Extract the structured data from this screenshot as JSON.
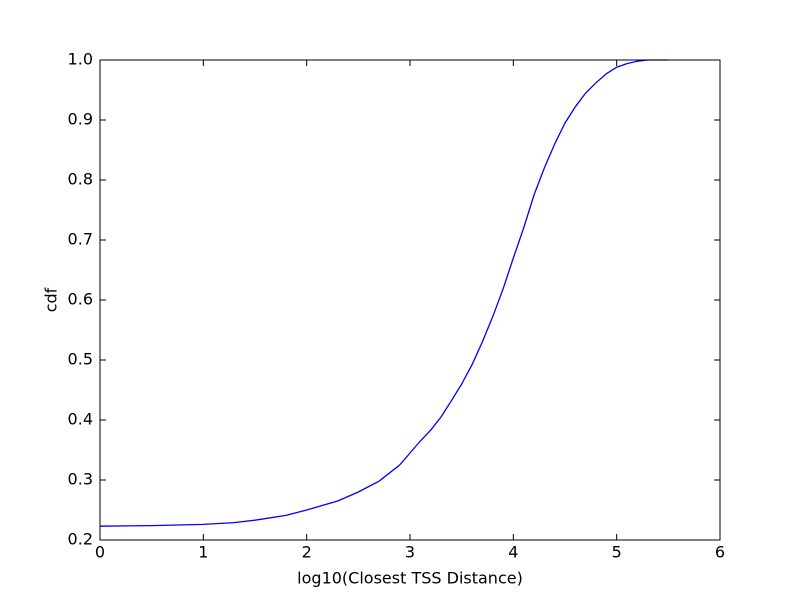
{
  "chart_data": {
    "type": "line",
    "xlabel": "log10(Closest TSS Distance)",
    "ylabel": "cdf",
    "x": [
      0,
      0.5,
      1.0,
      1.3,
      1.5,
      1.8,
      2.0,
      2.3,
      2.5,
      2.7,
      2.9,
      3.0,
      3.1,
      3.2,
      3.3,
      3.4,
      3.5,
      3.6,
      3.7,
      3.8,
      3.9,
      4.0,
      4.1,
      4.2,
      4.3,
      4.4,
      4.5,
      4.6,
      4.7,
      4.8,
      4.9,
      5.0,
      5.1,
      5.2,
      5.3,
      5.5
    ],
    "values": [
      0.223,
      0.224,
      0.226,
      0.229,
      0.233,
      0.241,
      0.25,
      0.265,
      0.28,
      0.298,
      0.325,
      0.345,
      0.365,
      0.383,
      0.405,
      0.432,
      0.46,
      0.492,
      0.53,
      0.572,
      0.618,
      0.67,
      0.72,
      0.775,
      0.82,
      0.86,
      0.895,
      0.922,
      0.945,
      0.962,
      0.977,
      0.988,
      0.994,
      0.998,
      1.0,
      1.0
    ],
    "color": "#0000ff",
    "xlim": [
      0,
      6
    ],
    "xticks": [
      0,
      1,
      2,
      3,
      4,
      5,
      6
    ],
    "ylim": [
      0.2,
      1.0
    ],
    "yticks": [
      0.2,
      0.3,
      0.4,
      0.5,
      0.6,
      0.7,
      0.8,
      0.9,
      {
        "value": 1.0,
        "label": "1.0"
      }
    ]
  }
}
